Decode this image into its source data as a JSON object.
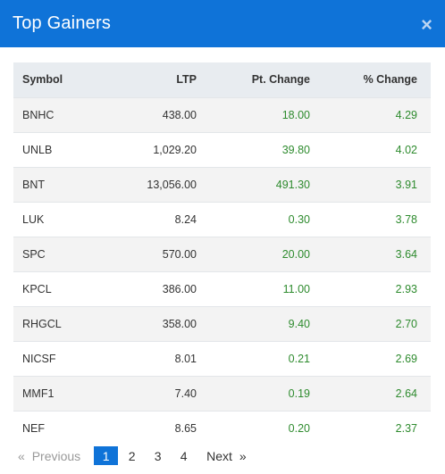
{
  "modal": {
    "title": "Top Gainers",
    "close_glyph": "×"
  },
  "table": {
    "headers": {
      "symbol": "Symbol",
      "ltp": "LTP",
      "pt_change": "Pt. Change",
      "pct_change": "% Change"
    },
    "rows": [
      {
        "symbol": "BNHC",
        "ltp": "438.00",
        "pt_change": "18.00",
        "pct_change": "4.29"
      },
      {
        "symbol": "UNLB",
        "ltp": "1,029.20",
        "pt_change": "39.80",
        "pct_change": "4.02"
      },
      {
        "symbol": "BNT",
        "ltp": "13,056.00",
        "pt_change": "491.30",
        "pct_change": "3.91"
      },
      {
        "symbol": "LUK",
        "ltp": "8.24",
        "pt_change": "0.30",
        "pct_change": "3.78"
      },
      {
        "symbol": "SPC",
        "ltp": "570.00",
        "pt_change": "20.00",
        "pct_change": "3.64"
      },
      {
        "symbol": "KPCL",
        "ltp": "386.00",
        "pt_change": "11.00",
        "pct_change": "2.93"
      },
      {
        "symbol": "RHGCL",
        "ltp": "358.00",
        "pt_change": "9.40",
        "pct_change": "2.70"
      },
      {
        "symbol": "NICSF",
        "ltp": "8.01",
        "pt_change": "0.21",
        "pct_change": "2.69"
      },
      {
        "symbol": "MMF1",
        "ltp": "7.40",
        "pt_change": "0.19",
        "pct_change": "2.64"
      },
      {
        "symbol": "NEF",
        "ltp": "8.65",
        "pt_change": "0.20",
        "pct_change": "2.37"
      }
    ]
  },
  "pagination": {
    "prev_chevron": "«",
    "previous_label": "Previous",
    "pages": [
      "1",
      "2",
      "3",
      "4"
    ],
    "active_page": "1",
    "next_label": "Next",
    "next_chevron": "»"
  },
  "colors": {
    "header_bg": "#0f73d8",
    "gain_text": "#2e8b2e",
    "table_head_bg": "#e8ecf0",
    "row_stripe": "#f3f3f3"
  }
}
